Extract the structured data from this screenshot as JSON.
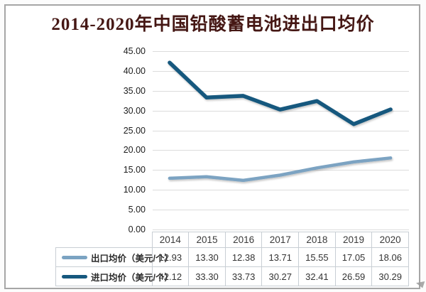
{
  "title": "2014-2020年中国铅酸蓄电池进出口均价",
  "colors": {
    "title_text": "#451714",
    "export_line": "#7BA3C2",
    "import_line": "#16587E",
    "gridline": "#DCDCDC",
    "table_border": "#C8CED4",
    "frame_border": "#A6A6A6"
  },
  "chart_data": {
    "type": "line",
    "title": "2014-2020年中国铅酸蓄电池进出口均价",
    "categories": [
      "2014",
      "2015",
      "2016",
      "2017",
      "2018",
      "2019",
      "2020"
    ],
    "series": [
      {
        "name": "出口均价（美元/个）",
        "values": [
          12.93,
          13.3,
          12.38,
          13.71,
          15.55,
          17.05,
          18.06
        ],
        "color": "#7BA3C2"
      },
      {
        "name": "进口均价（美元/个）",
        "values": [
          42.12,
          33.3,
          33.73,
          30.27,
          32.41,
          26.59,
          30.29
        ],
        "color": "#16587E"
      }
    ],
    "xlabel": "",
    "ylabel": "",
    "ylim": [
      0,
      45
    ],
    "ytick_step": 5,
    "ytick_decimals": 2,
    "grid": true,
    "legend_position": "table-left-column",
    "data_table_shown": true
  }
}
